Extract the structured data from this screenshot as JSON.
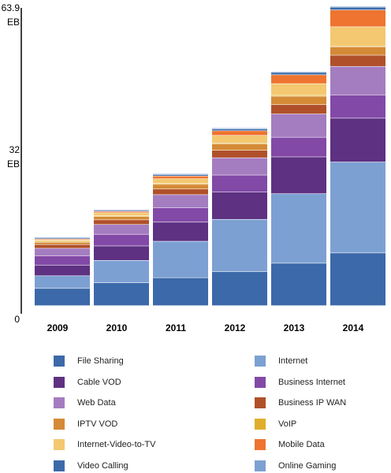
{
  "chart_data": {
    "type": "bar",
    "stacked": true,
    "categories": [
      "2009",
      "2010",
      "2011",
      "2012",
      "2013",
      "2014"
    ],
    "y_ticks": [
      {
        "value": 63.9,
        "label": "63.9",
        "unit": "EB"
      },
      {
        "value": 32,
        "label": "32",
        "unit": "EB"
      },
      {
        "value": 0,
        "label": "0",
        "unit": ""
      }
    ],
    "ylim": [
      0,
      63.9
    ],
    "grid": false,
    "legend_position": "bottom",
    "series": [
      {
        "name": "File Sharing",
        "color": "#3C69A9",
        "values": [
          3.7,
          4.9,
          6.0,
          7.3,
          9.1,
          11.3
        ]
      },
      {
        "name": "Internet",
        "color": "#7DA0D3",
        "values": [
          2.7,
          4.8,
          7.8,
          11.2,
          14.9,
          19.5
        ]
      },
      {
        "name": "Cable VOD",
        "color": "#5E3182",
        "values": [
          2.3,
          3.1,
          4.1,
          5.9,
          7.9,
          9.4
        ]
      },
      {
        "name": "Business Internet",
        "color": "#8249A7",
        "values": [
          2.0,
          2.5,
          3.1,
          3.6,
          4.2,
          5.0
        ]
      },
      {
        "name": "Web Data",
        "color": "#A47DC0",
        "values": [
          1.6,
          2.1,
          2.8,
          3.7,
          5.0,
          6.1
        ]
      },
      {
        "name": "Business IP WAN",
        "color": "#B0502A",
        "values": [
          0.8,
          1.0,
          1.2,
          1.6,
          2.0,
          2.4
        ]
      },
      {
        "name": "IPTV VOD",
        "color": "#D48A36",
        "values": [
          0.5,
          0.7,
          1.0,
          1.4,
          1.8,
          1.8
        ]
      },
      {
        "name": "VoIP",
        "color": "#E0AE2A",
        "values": [
          0.2,
          0.2,
          0.2,
          0.2,
          0.2,
          0.2
        ]
      },
      {
        "name": "Internet-Video-to-TV",
        "color": "#F3C870",
        "values": [
          0.3,
          0.6,
          1.0,
          1.6,
          2.5,
          4.1
        ]
      },
      {
        "name": "Mobile Data",
        "color": "#EE7430",
        "values": [
          0.2,
          0.3,
          0.6,
          1.0,
          1.9,
          3.6
        ]
      },
      {
        "name": "Video Calling",
        "color": "#3C69A9",
        "values": [
          0.2,
          0.2,
          0.3,
          0.4,
          0.5,
          0.6
        ]
      },
      {
        "name": "Online Gaming",
        "color": "#7DA0D3",
        "values": [
          0.2,
          0.2,
          0.2,
          0.2,
          0.2,
          0.2
        ]
      }
    ]
  }
}
